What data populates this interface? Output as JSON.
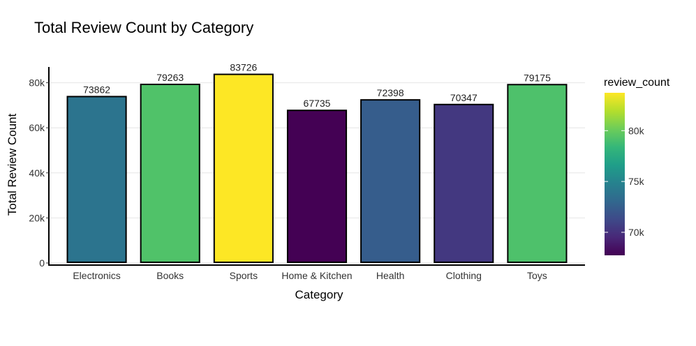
{
  "chart_data": {
    "type": "bar",
    "title": "Total Review Count by Category",
    "xlabel": "Category",
    "ylabel": "Total Review Count",
    "categories": [
      "Electronics",
      "Books",
      "Sports",
      "Home & Kitchen",
      "Health",
      "Clothing",
      "Toys"
    ],
    "values": [
      73862,
      79263,
      83726,
      67735,
      72398,
      70347,
      79175
    ],
    "data_labels": [
      "73862",
      "79263",
      "83726",
      "67735",
      "72398",
      "70347",
      "79175"
    ],
    "ylim": [
      0,
      87000
    ],
    "yticks": [
      0,
      20000,
      40000,
      60000,
      80000
    ],
    "ytick_labels": [
      "0",
      "20k",
      "40k",
      "60k",
      "80k"
    ],
    "grid": true,
    "bar_outline_color": "#000000",
    "legend": {
      "title": "review_count",
      "placement": "right",
      "colorscale": "viridis",
      "range": [
        67735,
        83726
      ],
      "ticks": [
        70000,
        75000,
        80000
      ],
      "tick_labels": [
        "70k",
        "75k",
        "80k"
      ],
      "colors": [
        "#440154",
        "#482878",
        "#3E4A89",
        "#31688E",
        "#26828E",
        "#1F9E89",
        "#35B779",
        "#6DCD59",
        "#B4DE2C",
        "#FDE725"
      ]
    }
  }
}
